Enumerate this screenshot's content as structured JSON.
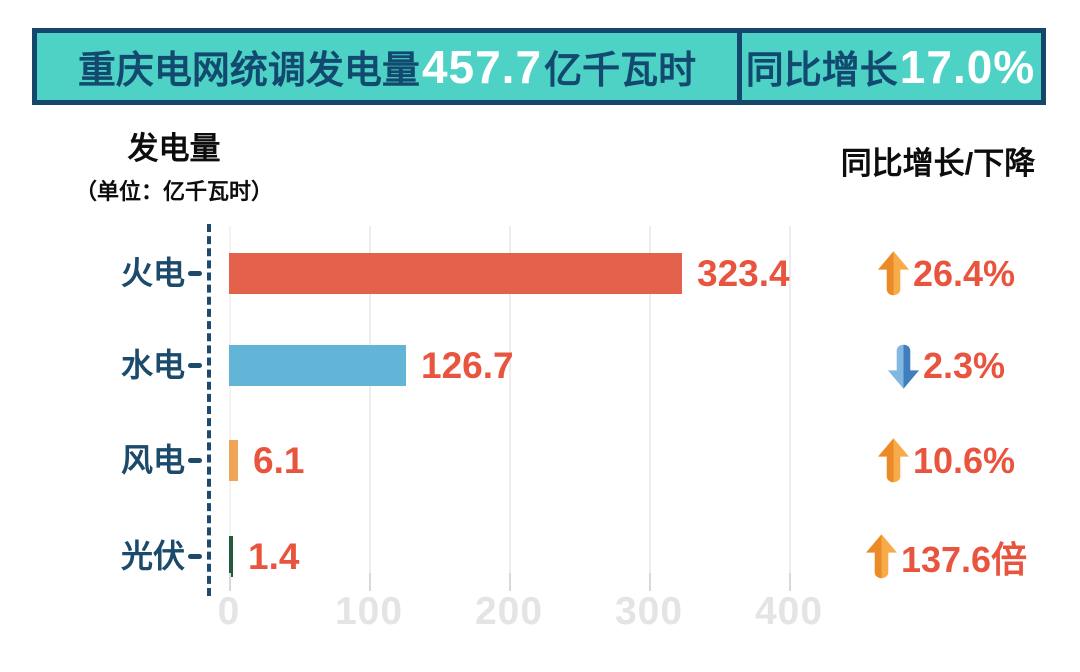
{
  "banner": {
    "left_prefix": "重庆电网统调发电量",
    "left_value": "457.7",
    "left_suffix": "亿千瓦时",
    "right_prefix": "同比增长",
    "right_value": "17.0%"
  },
  "left_header": {
    "title": "发电量",
    "subtitle": "（单位：亿千瓦时）"
  },
  "right_header": {
    "title": "同比增长/下降"
  },
  "rows": [
    {
      "label": "火电",
      "value": 323.4,
      "value_label": "323.4",
      "change": "26.4%",
      "direction": "up",
      "color": "#e4614b"
    },
    {
      "label": "水电",
      "value": 126.7,
      "value_label": "126.7",
      "change": "2.3%",
      "direction": "down",
      "color": "#63b5d8"
    },
    {
      "label": "风电",
      "value": 6.1,
      "value_label": "6.1",
      "change": "10.6%",
      "direction": "up",
      "color": "#efa558"
    },
    {
      "label": "光伏",
      "value": 1.4,
      "value_label": "1.4",
      "change": "137.6倍",
      "direction": "up",
      "color": "#235c3c"
    }
  ],
  "xticks": [
    "0",
    "100",
    "200",
    "300",
    "400"
  ],
  "chart_data": {
    "type": "bar",
    "orientation": "horizontal",
    "title": "重庆电网统调发电量457.7亿千瓦时 同比增长17.0%",
    "unit": "亿千瓦时",
    "categories": [
      "火电",
      "水电",
      "风电",
      "光伏"
    ],
    "values": [
      323.4,
      126.7,
      6.1,
      1.4
    ],
    "series": [
      {
        "name": "发电量(亿千瓦时)",
        "values": [
          323.4,
          126.7,
          6.1,
          1.4
        ]
      },
      {
        "name": "同比增长/下降",
        "values": [
          "+26.4%",
          "-2.3%",
          "+10.6%",
          "+137.6倍"
        ]
      }
    ],
    "total": 457.7,
    "total_yoy_change": "+17.0%",
    "xlabel": "发电量（单位：亿千瓦时）",
    "ylabel": "",
    "xlim": [
      0,
      450
    ],
    "x_ticks": [
      0,
      100,
      200,
      300,
      400
    ],
    "grid": true,
    "legend": false,
    "bar_colors": [
      "#e4614b",
      "#63b5d8",
      "#efa558",
      "#235c3c"
    ]
  },
  "colors": {
    "banner_bg": "#4fd2c6",
    "banner_border": "#15466b",
    "banner_text": "#114a6e",
    "banner_number": "#ffffff",
    "category_label": "#1b4a6b",
    "value_text": "#e8543e",
    "up_arrow": "#f09936",
    "down_arrow": "#5b9ed2",
    "axis_tick_label": "#e4e4e4",
    "gridline": "#ededed"
  }
}
